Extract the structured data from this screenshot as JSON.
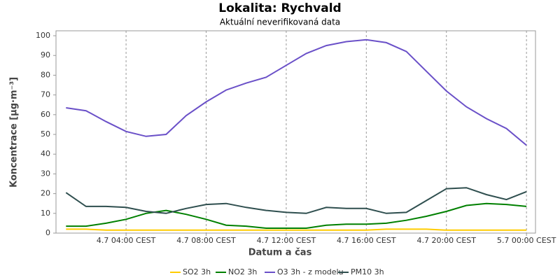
{
  "chart_data": {
    "type": "line",
    "title": "Lokalita: Rychvald",
    "subtitle": "Aktuální neverifikovaná data",
    "xlabel": "Datum a čas",
    "ylabel": "Koncentrace [µg·m⁻³]",
    "x": [
      1,
      2,
      3,
      4,
      5,
      6,
      7,
      8,
      9,
      10,
      11,
      12,
      13,
      14,
      15,
      16,
      17,
      18,
      19,
      20,
      21,
      22,
      23,
      24
    ],
    "xlim": [
      0.5,
      24.45
    ],
    "xticks": [
      {
        "value": 4,
        "label": "4.7 04:00 CEST"
      },
      {
        "value": 8,
        "label": "4.7 08:00 CEST"
      },
      {
        "value": 12,
        "label": "4.7 12:00 CEST"
      },
      {
        "value": 16,
        "label": "4.7 16:00 CEST"
      },
      {
        "value": 20,
        "label": "4.7 20:00 CEST"
      },
      {
        "value": 24,
        "label": "5.7 00:00 CEST"
      }
    ],
    "ylim": [
      0,
      102.5
    ],
    "yticks": [
      0,
      10,
      20,
      30,
      40,
      50,
      60,
      70,
      80,
      90,
      100
    ],
    "xgrid": true,
    "legend": "bottom",
    "series": [
      {
        "name": "SO2 3h",
        "color": "#ffcc00",
        "values": [
          2,
          2,
          1.5,
          1.5,
          1.5,
          1.5,
          1.5,
          1.5,
          1.5,
          1.5,
          1.5,
          1.5,
          1.5,
          1.5,
          1.5,
          1.5,
          2,
          2,
          2,
          1.5,
          1.5,
          1.5,
          1.5,
          1.5
        ]
      },
      {
        "name": "NO2 3h",
        "color": "#008000",
        "values": [
          3.5,
          3.5,
          5,
          7,
          10,
          11.5,
          9.5,
          7,
          4,
          3.5,
          2.5,
          2.5,
          2.5,
          4,
          4.5,
          4.5,
          5,
          6.5,
          8.5,
          11,
          14,
          15,
          14.5,
          13.5
        ]
      },
      {
        "name": "O3 3h - z modelu",
        "color": "#6a50c8",
        "values": [
          63.5,
          62,
          56.5,
          51.5,
          49,
          50,
          59.5,
          66.5,
          72.5,
          76,
          79,
          85,
          91,
          95,
          97,
          98,
          96.5,
          92,
          82,
          72,
          64,
          58,
          53,
          44.5
        ]
      },
      {
        "name": "PM10 3h",
        "color": "#2f4f4f",
        "values": [
          20.5,
          13.5,
          13.5,
          13,
          11,
          10,
          12.5,
          14.5,
          15,
          13,
          11.5,
          10.5,
          10,
          13,
          12.5,
          12.5,
          10,
          10.5,
          16.5,
          22.5,
          23,
          19.5,
          17,
          21
        ]
      }
    ]
  }
}
